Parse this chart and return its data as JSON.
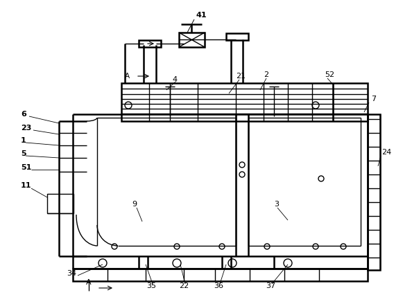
{
  "bg_color": "#ffffff",
  "line_color": "#000000",
  "lw": 1.0,
  "lw2": 1.8
}
